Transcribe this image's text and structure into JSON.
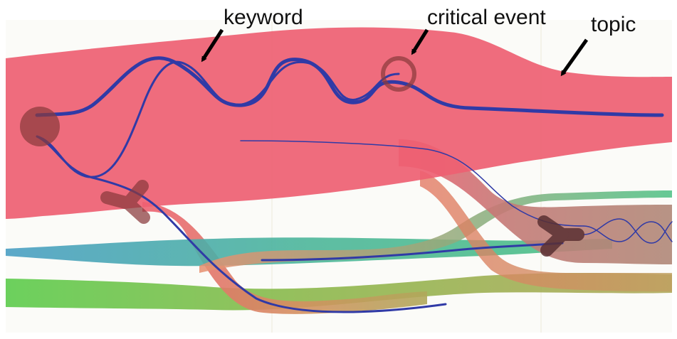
{
  "annotations": {
    "keyword": "keyword",
    "critical_event": "critical event",
    "topic": "topic"
  },
  "colors": {
    "topic_red": "#ee6072",
    "topic_blue": "#4a9fc4",
    "topic_teal": "#4cc084",
    "topic_green": "#5ccc4c",
    "topic_olive": "#b0a85a",
    "topic_brown": "#b08878",
    "keyword_line": "#303aa6",
    "event_marker": "#8a3a3c",
    "arrow": "#000000"
  }
}
